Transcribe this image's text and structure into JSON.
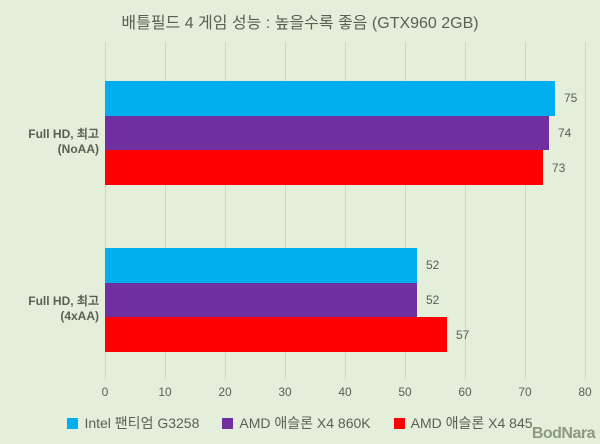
{
  "chart_data": {
    "type": "bar",
    "orientation": "horizontal-grouped",
    "title": "배틀필드 4 게임 성능 : 높을수록 좋음 (GTX960 2GB)",
    "categories": [
      "Full HD, 최고(NoAA)",
      "Full HD, 최고(4xAA)"
    ],
    "series": [
      {
        "name": "Intel 팬티엄 G3258",
        "color": "#00AEEF",
        "values": [
          75,
          52
        ]
      },
      {
        "name": "AMD 애슬론 X4 860K",
        "color": "#7030A0",
        "values": [
          74,
          52
        ]
      },
      {
        "name": "AMD 애슬론 X4 845",
        "color": "#FF0000",
        "values": [
          73,
          57
        ]
      }
    ],
    "xlabel": "",
    "ylabel": "",
    "xlim": [
      0,
      80
    ],
    "xticks": [
      "0",
      "10",
      "20",
      "30",
      "40",
      "50",
      "60",
      "70",
      "80"
    ],
    "grid": "vertical gridlines on",
    "legend_position": "bottom",
    "value_labels": "outside end of bars"
  },
  "colors": {
    "background": "#E4EFDB",
    "gridline": "#CBD8C0",
    "text": "#595F55"
  },
  "watermark": "BodNara"
}
